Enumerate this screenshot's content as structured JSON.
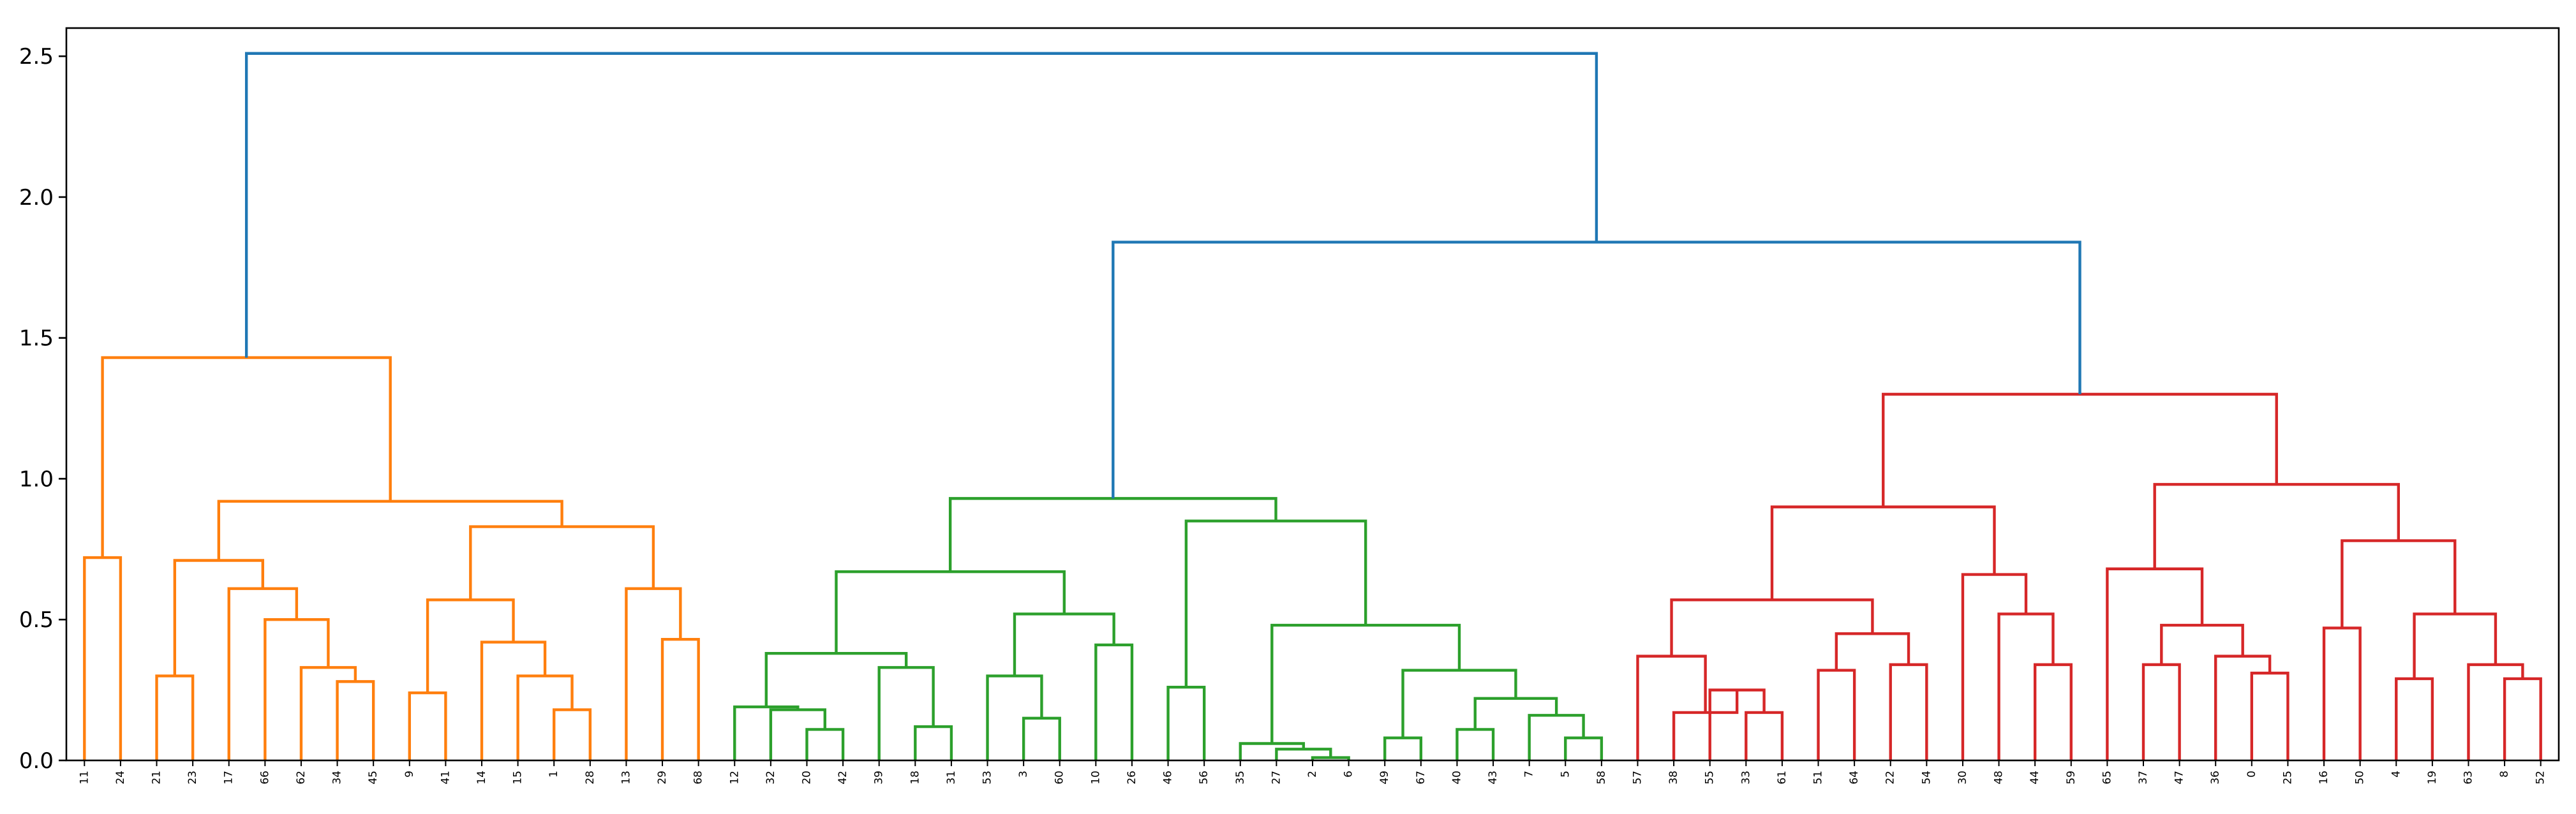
{
  "chart_data": {
    "type": "dendrogram",
    "title": "",
    "xlabel": "",
    "ylabel": "",
    "ylim": [
      0,
      2.6
    ],
    "yticks": [
      0.0,
      0.5,
      1.0,
      1.5,
      2.0,
      2.5
    ],
    "ytick_labels": [
      "0.0",
      "0.5",
      "1.0",
      "1.5",
      "2.0",
      "2.5"
    ],
    "grid": false,
    "leaf_order": [
      "11",
      "24",
      "21",
      "23",
      "17",
      "66",
      "62",
      "34",
      "45",
      "9",
      "41",
      "14",
      "15",
      "1",
      "28",
      "13",
      "29",
      "68",
      "12",
      "32",
      "20",
      "42",
      "39",
      "18",
      "31",
      "53",
      "3",
      "60",
      "10",
      "26",
      "46",
      "56",
      "35",
      "27",
      "2",
      "6",
      "49",
      "67",
      "40",
      "43",
      "7",
      "5",
      "58",
      "57",
      "38",
      "55",
      "33",
      "61",
      "51",
      "64",
      "22",
      "54",
      "30",
      "48",
      "44",
      "59",
      "65",
      "37",
      "47",
      "36",
      "0",
      "25",
      "16",
      "50",
      "4",
      "19",
      "63",
      "8",
      "52"
    ],
    "colors": {
      "above_threshold": "#1f77b4",
      "cluster_1": "#ff7f0e",
      "cluster_2": "#2ca02c",
      "cluster_3": "#d62728"
    },
    "merges": [
      {
        "id": "A1",
        "left": "11",
        "right": "24",
        "height": 0.72,
        "color": "cluster_1"
      },
      {
        "id": "A2",
        "left": "21",
        "right": "23",
        "height": 0.3,
        "color": "cluster_1"
      },
      {
        "id": "A3",
        "left": "34",
        "right": "45",
        "height": 0.28,
        "color": "cluster_1"
      },
      {
        "id": "A4",
        "left": "62",
        "right": "A3",
        "height": 0.33,
        "color": "cluster_1"
      },
      {
        "id": "A5",
        "left": "66",
        "right": "A4",
        "height": 0.5,
        "color": "cluster_1"
      },
      {
        "id": "A6",
        "left": "17",
        "right": "A5",
        "height": 0.61,
        "color": "cluster_1"
      },
      {
        "id": "A7",
        "left": "A2",
        "right": "A6",
        "height": 0.71,
        "color": "cluster_1"
      },
      {
        "id": "A8",
        "left": "9",
        "right": "41",
        "height": 0.24,
        "color": "cluster_1"
      },
      {
        "id": "A9",
        "left": "1",
        "right": "28",
        "height": 0.18,
        "color": "cluster_1"
      },
      {
        "id": "A10",
        "left": "15",
        "right": "A9",
        "height": 0.3,
        "color": "cluster_1"
      },
      {
        "id": "A11",
        "left": "14",
        "right": "A10",
        "height": 0.42,
        "color": "cluster_1"
      },
      {
        "id": "A12",
        "left": "A8",
        "right": "A11",
        "height": 0.57,
        "color": "cluster_1"
      },
      {
        "id": "A13",
        "left": "29",
        "right": "68",
        "height": 0.43,
        "color": "cluster_1"
      },
      {
        "id": "A14",
        "left": "13",
        "right": "A13",
        "height": 0.61,
        "color": "cluster_1"
      },
      {
        "id": "A15",
        "left": "A12",
        "right": "A14",
        "height": 0.83,
        "color": "cluster_1"
      },
      {
        "id": "A16",
        "left": "A7",
        "right": "A15",
        "height": 0.92,
        "color": "cluster_1"
      },
      {
        "id": "A17",
        "left": "A1",
        "right": "A16",
        "height": 1.43,
        "color": "cluster_1"
      },
      {
        "id": "B1",
        "left": "20",
        "right": "42",
        "height": 0.11,
        "color": "cluster_2"
      },
      {
        "id": "B2",
        "left": "32",
        "right": "B1",
        "height": 0.18,
        "color": "cluster_2"
      },
      {
        "id": "B3",
        "left": "12",
        "right": "B2",
        "height": 0.19,
        "color": "cluster_2"
      },
      {
        "id": "B4",
        "left": "18",
        "right": "31",
        "height": 0.12,
        "color": "cluster_2"
      },
      {
        "id": "B5",
        "left": "39",
        "right": "B4",
        "height": 0.33,
        "color": "cluster_2"
      },
      {
        "id": "B6",
        "left": "B3",
        "right": "B5",
        "height": 0.38,
        "color": "cluster_2"
      },
      {
        "id": "B7",
        "left": "3",
        "right": "60",
        "height": 0.15,
        "color": "cluster_2"
      },
      {
        "id": "B8",
        "left": "53",
        "right": "B7",
        "height": 0.3,
        "color": "cluster_2"
      },
      {
        "id": "B9",
        "left": "10",
        "right": "26",
        "height": 0.41,
        "color": "cluster_2"
      },
      {
        "id": "B10",
        "left": "B8",
        "right": "B9",
        "height": 0.52,
        "color": "cluster_2"
      },
      {
        "id": "B11",
        "left": "B6",
        "right": "B10",
        "height": 0.67,
        "color": "cluster_2"
      },
      {
        "id": "B12",
        "left": "46",
        "right": "56",
        "height": 0.26,
        "color": "cluster_2"
      },
      {
        "id": "B13",
        "left": "2",
        "right": "6",
        "height": 0.01,
        "color": "cluster_2"
      },
      {
        "id": "B14",
        "left": "27",
        "right": "B13",
        "height": 0.04,
        "color": "cluster_2"
      },
      {
        "id": "B15",
        "left": "35",
        "right": "B14",
        "height": 0.06,
        "color": "cluster_2"
      },
      {
        "id": "B16",
        "left": "49",
        "right": "67",
        "height": 0.08,
        "color": "cluster_2"
      },
      {
        "id": "B17",
        "left": "40",
        "right": "43",
        "height": 0.11,
        "color": "cluster_2"
      },
      {
        "id": "B18",
        "left": "5",
        "right": "58",
        "height": 0.08,
        "color": "cluster_2"
      },
      {
        "id": "B19",
        "left": "7",
        "right": "B18",
        "height": 0.16,
        "color": "cluster_2"
      },
      {
        "id": "B20",
        "left": "B17",
        "right": "B19",
        "height": 0.22,
        "color": "cluster_2"
      },
      {
        "id": "B21",
        "left": "B16",
        "right": "B20",
        "height": 0.32,
        "color": "cluster_2"
      },
      {
        "id": "B22",
        "left": "B15",
        "right": "B21",
        "height": 0.48,
        "color": "cluster_2"
      },
      {
        "id": "B23",
        "left": "B12",
        "right": "B22",
        "height": 0.85,
        "color": "cluster_2"
      },
      {
        "id": "B24",
        "left": "B11",
        "right": "B23",
        "height": 0.93,
        "color": "cluster_2"
      },
      {
        "id": "C1",
        "left": "33",
        "right": "61",
        "height": 0.17,
        "color": "cluster_3"
      },
      {
        "id": "C2",
        "left": "55",
        "right": "C1",
        "height": 0.25,
        "color": "cluster_3"
      },
      {
        "id": "C3",
        "left": "38",
        "right": "C2",
        "height": 0.17,
        "color": "cluster_3"
      },
      {
        "id": "C4",
        "left": "57",
        "right": "C3",
        "height": 0.37,
        "color": "cluster_3"
      },
      {
        "id": "C5",
        "left": "51",
        "right": "64",
        "height": 0.32,
        "color": "cluster_3"
      },
      {
        "id": "C6",
        "left": "22",
        "right": "54",
        "height": 0.34,
        "color": "cluster_3"
      },
      {
        "id": "C7",
        "left": "C5",
        "right": "C6",
        "height": 0.45,
        "color": "cluster_3"
      },
      {
        "id": "C8",
        "left": "C4",
        "right": "C7",
        "height": 0.57,
        "color": "cluster_3"
      },
      {
        "id": "C9",
        "left": "44",
        "right": "59",
        "height": 0.34,
        "color": "cluster_3"
      },
      {
        "id": "C10",
        "left": "48",
        "right": "C9",
        "height": 0.52,
        "color": "cluster_3"
      },
      {
        "id": "C11",
        "left": "30",
        "right": "C10",
        "height": 0.66,
        "color": "cluster_3"
      },
      {
        "id": "C12",
        "left": "C8",
        "right": "C11",
        "height": 0.9,
        "color": "cluster_3"
      },
      {
        "id": "C13",
        "left": "37",
        "right": "47",
        "height": 0.34,
        "color": "cluster_3"
      },
      {
        "id": "C14",
        "left": "0",
        "right": "25",
        "height": 0.31,
        "color": "cluster_3"
      },
      {
        "id": "C15",
        "left": "36",
        "right": "C14",
        "height": 0.37,
        "color": "cluster_3"
      },
      {
        "id": "C16",
        "left": "C13",
        "right": "C15",
        "height": 0.48,
        "color": "cluster_3"
      },
      {
        "id": "C17",
        "left": "65",
        "right": "C16",
        "height": 0.68,
        "color": "cluster_3"
      },
      {
        "id": "C18",
        "left": "16",
        "right": "50",
        "height": 0.47,
        "color": "cluster_3"
      },
      {
        "id": "C19",
        "left": "4",
        "right": "19",
        "height": 0.29,
        "color": "cluster_3"
      },
      {
        "id": "C20",
        "left": "8",
        "right": "52",
        "height": 0.29,
        "color": "cluster_3"
      },
      {
        "id": "C21",
        "left": "63",
        "right": "C20",
        "height": 0.34,
        "color": "cluster_3"
      },
      {
        "id": "C22",
        "left": "C19",
        "right": "C21",
        "height": 0.52,
        "color": "cluster_3"
      },
      {
        "id": "C23",
        "left": "C18",
        "right": "C22",
        "height": 0.78,
        "color": "cluster_3"
      },
      {
        "id": "C24",
        "left": "C17",
        "right": "C23",
        "height": 0.98,
        "color": "cluster_3"
      },
      {
        "id": "C25",
        "left": "C12",
        "right": "C24",
        "height": 1.3,
        "color": "cluster_3"
      },
      {
        "id": "R1",
        "left": "B24",
        "right": "C25",
        "height": 1.84,
        "color": "above_threshold"
      },
      {
        "id": "R2",
        "left": "A17",
        "right": "R1",
        "height": 2.51,
        "color": "above_threshold"
      }
    ]
  }
}
